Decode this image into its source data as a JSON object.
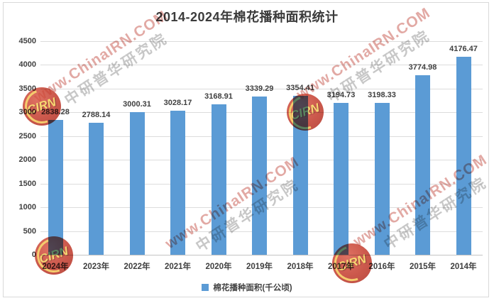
{
  "title": "2014-2024年棉花播种面积统计",
  "chart_data": {
    "type": "bar",
    "title": "2014-2024年棉花播种面积统计",
    "categories": [
      "2024年",
      "2023年",
      "2022年",
      "2021年",
      "2020年",
      "2019年",
      "2018年",
      "2017年",
      "2016年",
      "2015年",
      "2014年"
    ],
    "values": [
      2838.28,
      2788.14,
      3000.31,
      3028.17,
      3168.91,
      3339.29,
      3354.41,
      3194.73,
      3198.33,
      3774.98,
      4176.47
    ],
    "series_name": "棉花播种面积(千公顷)",
    "xlabel": "",
    "ylabel": "",
    "ylim": [
      0,
      4500
    ],
    "yticks": [
      0,
      500,
      1000,
      1500,
      2000,
      2500,
      3000,
      3500,
      4000,
      4500
    ],
    "grid": true,
    "legend_position": "bottom",
    "bar_color": "#5B9BD5",
    "data_label_color": "#3F3F3F"
  },
  "legend": {
    "label": "棉花播种面积(千公顷)",
    "marker_color": "#5B9BD5"
  },
  "watermark": {
    "url_text": "www.ChinaIRN.COM",
    "org_text": "中研普华研究院",
    "logo_text": "CIRN",
    "url_color": "#C6544A",
    "org_color": "#8A8A8A",
    "logo_bg_color": "#C03425",
    "logo_fg_color": "#F2C14E"
  },
  "colors": {
    "background": "#FFFFFF",
    "frame_border": "#D9D9D9",
    "gridline": "#DCDCDC",
    "axis_text": "#404040",
    "title_text": "#3B3B3B"
  }
}
